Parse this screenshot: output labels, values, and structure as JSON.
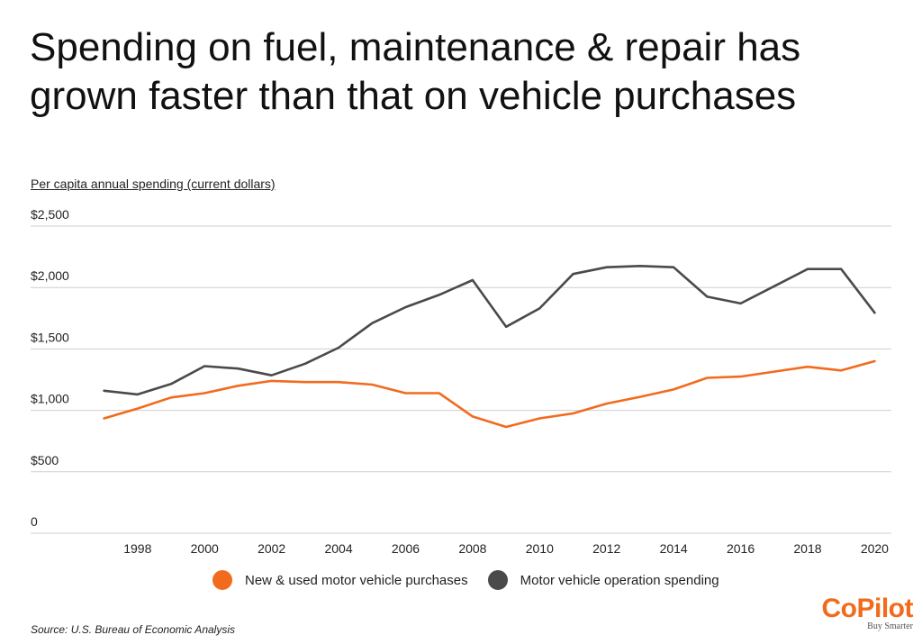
{
  "header": {
    "title": "Spending on fuel, maintenance & repair has grown faster than that on vehicle purchases"
  },
  "source": "Source: U.S. Bureau of Economic Analysis",
  "brand": {
    "name": "CoPilot",
    "tagline": "Buy Smarter",
    "color": "#f26b1d"
  },
  "chart_data": {
    "type": "line",
    "title": "Spending on fuel, maintenance & repair has grown faster than that on vehicle purchases",
    "ylabel": "Per capita annual spending (current dollars)",
    "xlabel": "",
    "x": [
      1997,
      1998,
      1999,
      2000,
      2001,
      2002,
      2003,
      2004,
      2005,
      2006,
      2007,
      2008,
      2009,
      2010,
      2011,
      2012,
      2013,
      2014,
      2015,
      2016,
      2017,
      2018,
      2019,
      2020
    ],
    "xticks": [
      1998,
      2000,
      2002,
      2004,
      2006,
      2008,
      2010,
      2012,
      2014,
      2016,
      2018,
      2020
    ],
    "xlim": [
      1996.5,
      2020.5
    ],
    "ylim": [
      0,
      2500
    ],
    "yticks": [
      {
        "value": 0,
        "label": "0"
      },
      {
        "value": 500,
        "label": "$500"
      },
      {
        "value": 1000,
        "label": "$1,000"
      },
      {
        "value": 1500,
        "label": "$1,500"
      },
      {
        "value": 2000,
        "label": "$2,000"
      },
      {
        "value": 2500,
        "label": "$2,500"
      }
    ],
    "grid": true,
    "legend_position": "bottom",
    "series": [
      {
        "name": "New & used motor vehicle purchases",
        "color": "#f26b1d",
        "values": [
          935,
          1015,
          1105,
          1140,
          1200,
          1240,
          1230,
          1230,
          1210,
          1140,
          1140,
          950,
          865,
          935,
          975,
          1055,
          1110,
          1170,
          1265,
          1275,
          1315,
          1355,
          1325,
          1400
        ]
      },
      {
        "name": "Motor vehicle operation spending",
        "color": "#4a4a4a",
        "values": [
          1160,
          1130,
          1215,
          1360,
          1340,
          1285,
          1380,
          1510,
          1710,
          1840,
          1940,
          2060,
          1680,
          1830,
          2110,
          2165,
          2175,
          2165,
          1925,
          1870,
          2010,
          2150,
          2150,
          1795
        ]
      }
    ]
  }
}
